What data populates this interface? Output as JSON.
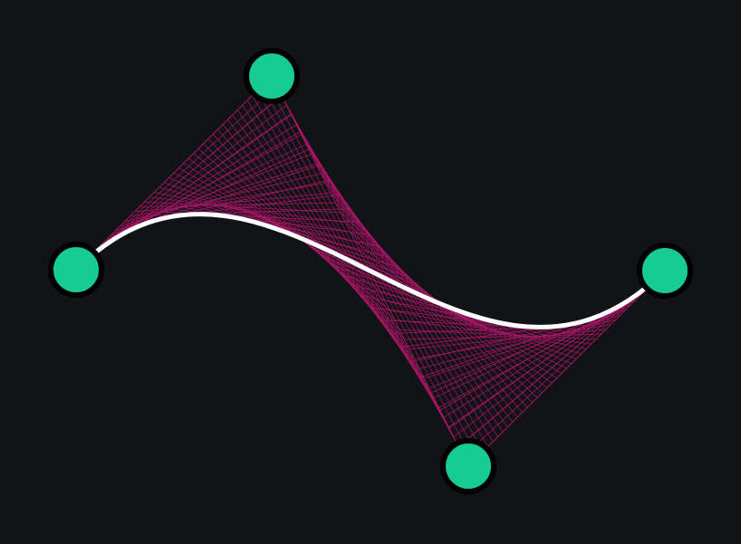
{
  "colors": {
    "background": "#111317",
    "curve": "#ffffff",
    "construction_lines": "#b0166a",
    "handle_fill": "#17cc92",
    "handle_ring": "#000000"
  },
  "bezier": {
    "construction_steps": 40
  }
}
